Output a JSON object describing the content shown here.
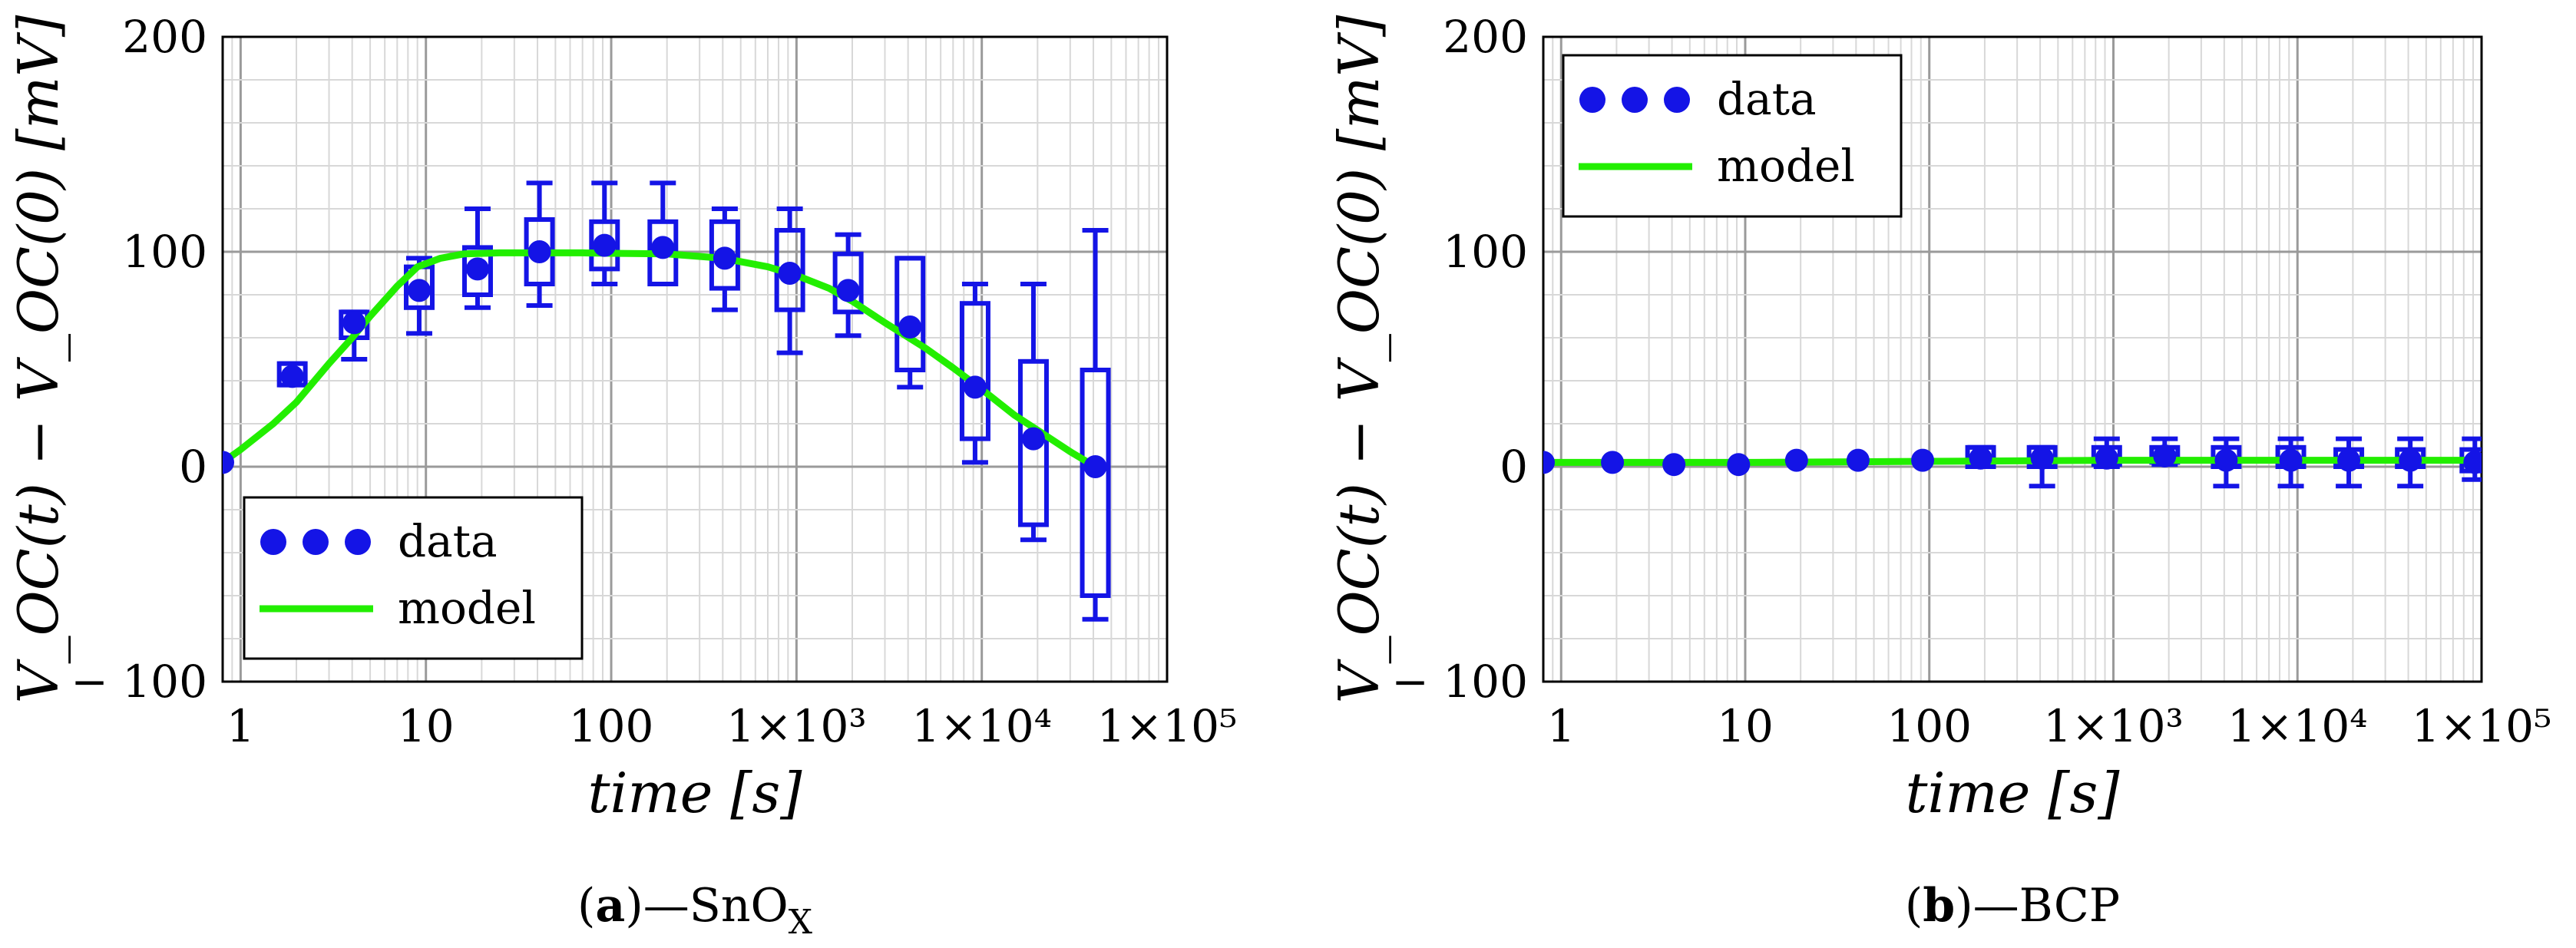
{
  "colors": {
    "data": "#1414e6",
    "model": "#22ee00",
    "frame": "#000000",
    "grid_major": "#9a9a9a",
    "grid_minor": "#d8d8d8"
  },
  "chart_data": [
    {
      "type": "scatter",
      "id": "a",
      "caption": {
        "label": "a",
        "separator": "—",
        "material": "SnO",
        "subscript": "X"
      },
      "xlabel": "time [s]",
      "ylabel": "V_OC(t) − V_OC(0) [mV]",
      "xscale": "log",
      "xlim": [
        0.8,
        100000
      ],
      "ylim": [
        -100,
        200
      ],
      "xticks": [
        1,
        10,
        100,
        1000,
        10000,
        100000
      ],
      "xtick_labels": [
        "1",
        "10",
        "100",
        "1×10³",
        "1×10⁴",
        "1×10⁵"
      ],
      "yticks": [
        -100,
        0,
        100,
        200
      ],
      "ytick_labels": [
        "− 100",
        "0",
        "100",
        "200"
      ],
      "grid": true,
      "legend": {
        "position": "bottom-left",
        "entries": [
          "data",
          "model"
        ]
      },
      "series": [
        {
          "name": "data",
          "kind": "points_with_boxplots",
          "x": [
            0.8,
            1.9,
            4.1,
            9.2,
            19,
            41,
            92,
            190,
            410,
            920,
            1900,
            4100,
            9200,
            19000,
            41000
          ],
          "y": [
            2,
            42,
            67,
            82,
            92,
            100,
            103,
            102,
            97,
            90,
            82,
            65,
            37,
            13,
            0
          ],
          "boxes": [
            null,
            {
              "q1": 38,
              "q3": 48,
              "min": 38,
              "max": 48
            },
            {
              "q1": 60,
              "q3": 72,
              "min": 50,
              "max": 72
            },
            {
              "q1": 74,
              "q3": 93,
              "min": 62,
              "max": 97
            },
            {
              "q1": 80,
              "q3": 102,
              "min": 74,
              "max": 120
            },
            {
              "q1": 85,
              "q3": 115,
              "min": 75,
              "max": 132
            },
            {
              "q1": 92,
              "q3": 114,
              "min": 85,
              "max": 132
            },
            {
              "q1": 85,
              "q3": 114,
              "min": 85,
              "max": 132
            },
            {
              "q1": 83,
              "q3": 114,
              "min": 73,
              "max": 120
            },
            {
              "q1": 73,
              "q3": 110,
              "min": 53,
              "max": 120
            },
            {
              "q1": 72,
              "q3": 99,
              "min": 61,
              "max": 108
            },
            {
              "q1": 45,
              "q3": 97,
              "min": 37,
              "max": 97
            },
            {
              "q1": 13,
              "q3": 76,
              "min": 2,
              "max": 85
            },
            {
              "q1": -27,
              "q3": 49,
              "min": -34,
              "max": 85
            },
            {
              "q1": -60,
              "q3": 45,
              "min": -71,
              "max": 110
            }
          ]
        },
        {
          "name": "model",
          "kind": "line",
          "x": [
            0.8,
            1,
            1.5,
            2,
            3,
            4,
            5,
            7,
            9,
            12,
            16,
            25,
            40,
            70,
            100,
            200,
            400,
            700,
            1000,
            1500,
            2000,
            3000,
            5000,
            7000,
            10000,
            15000,
            20000,
            30000,
            41000
          ],
          "y": [
            2,
            8,
            20,
            30,
            48,
            60,
            70,
            84,
            93,
            97,
            99,
            99.5,
            99.5,
            99.5,
            99.3,
            99,
            97,
            93,
            89,
            83,
            77,
            67,
            55,
            46,
            36,
            24,
            17,
            7,
            0
          ]
        }
      ]
    },
    {
      "type": "scatter",
      "id": "b",
      "caption": {
        "label": "b",
        "separator": "—",
        "material": "BCP"
      },
      "xlabel": "time [s]",
      "ylabel": "V_OC(t) − V_OC(0) [mV]",
      "xscale": "log",
      "xlim": [
        0.8,
        100000
      ],
      "ylim": [
        -100,
        200
      ],
      "xticks": [
        1,
        10,
        100,
        1000,
        10000,
        100000
      ],
      "xtick_labels": [
        "1",
        "10",
        "100",
        "1×10³",
        "1×10⁴",
        "1×10⁵"
      ],
      "yticks": [
        -100,
        0,
        100,
        200
      ],
      "ytick_labels": [
        "− 100",
        "0",
        "100",
        "200"
      ],
      "grid": true,
      "legend": {
        "position": "top-left",
        "entries": [
          "data",
          "model"
        ]
      },
      "series": [
        {
          "name": "data",
          "kind": "points_with_boxplots",
          "x": [
            0.8,
            1.9,
            4.1,
            9.2,
            19,
            41,
            92,
            190,
            410,
            920,
            1900,
            4100,
            9200,
            19000,
            41000,
            92000
          ],
          "y": [
            2,
            2,
            1,
            1,
            3,
            3,
            3,
            4,
            4,
            4,
            5,
            3,
            3,
            3,
            3,
            2
          ],
          "boxes": [
            null,
            null,
            null,
            null,
            null,
            null,
            null,
            {
              "q1": 0,
              "q3": 9,
              "min": 0,
              "max": 9
            },
            {
              "q1": 0,
              "q3": 9,
              "min": -9,
              "max": 9
            },
            {
              "q1": 1,
              "q3": 9,
              "min": 0,
              "max": 13
            },
            {
              "q1": 2,
              "q3": 9,
              "min": 1,
              "max": 13
            },
            {
              "q1": 0,
              "q3": 9,
              "min": -9,
              "max": 13
            },
            {
              "q1": 0,
              "q3": 9,
              "min": -9,
              "max": 13
            },
            {
              "q1": 0,
              "q3": 8,
              "min": -9,
              "max": 13
            },
            {
              "q1": 0,
              "q3": 8,
              "min": -9,
              "max": 13
            },
            {
              "q1": -2,
              "q3": 8,
              "min": -6,
              "max": 13
            }
          ]
        },
        {
          "name": "model",
          "kind": "line",
          "x": [
            0.8,
            10,
            100,
            1000,
            10000,
            100000
          ],
          "y": [
            2,
            2,
            2.5,
            3,
            3,
            3
          ]
        }
      ]
    }
  ]
}
